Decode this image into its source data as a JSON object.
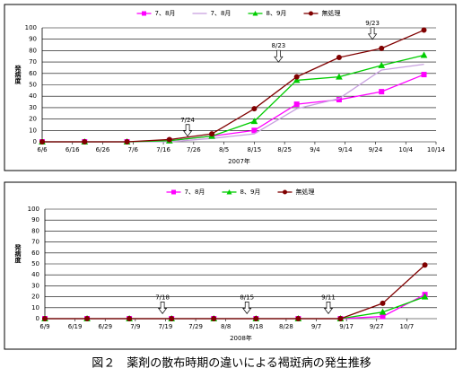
{
  "chart_data": [
    {
      "type": "line",
      "x_label": "2007年",
      "y_label": "発病度",
      "xlim": [
        "2007-06-06",
        "2007-10-14"
      ],
      "xticks": [
        {
          "value": "2007-06-06",
          "label": "6/6"
        },
        {
          "value": "2007-06-16",
          "label": "6/16"
        },
        {
          "value": "2007-06-26",
          "label": "6/26"
        },
        {
          "value": "2007-07-06",
          "label": "7/6"
        },
        {
          "value": "2007-07-16",
          "label": "7/16"
        },
        {
          "value": "2007-07-26",
          "label": "7/26"
        },
        {
          "value": "2007-08-05",
          "label": "8/5"
        },
        {
          "value": "2007-08-15",
          "label": "8/15"
        },
        {
          "value": "2007-08-25",
          "label": "8/25"
        },
        {
          "value": "2007-09-04",
          "label": "9/4"
        },
        {
          "value": "2007-09-14",
          "label": "9/14"
        },
        {
          "value": "2007-09-24",
          "label": "9/24"
        },
        {
          "value": "2007-10-04",
          "label": "10/4"
        },
        {
          "value": "2007-10-14",
          "label": "10/14"
        }
      ],
      "ylim": [
        0,
        100
      ],
      "yticks": [
        0,
        10,
        20,
        30,
        40,
        50,
        60,
        70,
        80,
        90,
        100
      ],
      "grid": true,
      "x": [
        "2007-06-06",
        "2007-06-20",
        "2007-07-04",
        "2007-07-18",
        "2007-08-01",
        "2007-08-15",
        "2007-08-29",
        "2007-09-12",
        "2007-09-26",
        "2007-10-10"
      ],
      "series": [
        {
          "name": "7、8月",
          "color": "#ff00ff",
          "marker": "square",
          "values": [
            0,
            0,
            0,
            1,
            5,
            10,
            33,
            37,
            44,
            59
          ]
        },
        {
          "name": "7、8月",
          "color": "#c8a0e0",
          "marker": "none",
          "values": [
            0,
            0,
            0,
            0,
            3,
            7,
            29,
            38,
            63,
            68
          ]
        },
        {
          "name": "8、9月",
          "color": "#00cc00",
          "marker": "triangle",
          "values": [
            0,
            0,
            0,
            1,
            5,
            18,
            54,
            57,
            67,
            76
          ]
        },
        {
          "name": "無処理",
          "color": "#800000",
          "marker": "circle",
          "values": [
            0,
            0,
            0,
            2,
            7,
            29,
            57,
            74,
            82,
            98
          ]
        }
      ],
      "annotations": [
        {
          "text": "7/24",
          "x": "2007-07-24",
          "y": 12
        },
        {
          "text": "8/23",
          "x": "2007-08-23",
          "y": 77
        },
        {
          "text": "9/23",
          "x": "2007-09-23",
          "y": 97
        }
      ]
    },
    {
      "type": "line",
      "x_label": "2008年",
      "y_label": "発病度",
      "xlim": [
        "2008-06-09",
        "2008-10-17"
      ],
      "xticks": [
        {
          "value": "2008-06-09",
          "label": "6/9"
        },
        {
          "value": "2008-06-19",
          "label": "6/19"
        },
        {
          "value": "2008-06-29",
          "label": "6/29"
        },
        {
          "value": "2008-07-09",
          "label": "7/9"
        },
        {
          "value": "2008-07-19",
          "label": "7/19"
        },
        {
          "value": "2008-07-29",
          "label": "7/29"
        },
        {
          "value": "2008-08-08",
          "label": "8/8"
        },
        {
          "value": "2008-08-18",
          "label": "8/18"
        },
        {
          "value": "2008-08-28",
          "label": "8/28"
        },
        {
          "value": "2008-09-07",
          "label": "9/7"
        },
        {
          "value": "2008-09-17",
          "label": "9/17"
        },
        {
          "value": "2008-09-27",
          "label": "9/27"
        },
        {
          "value": "2008-10-07",
          "label": "10/7"
        }
      ],
      "ylim": [
        0,
        100
      ],
      "yticks": [
        0,
        10,
        20,
        30,
        40,
        50,
        60,
        70,
        80,
        90,
        100
      ],
      "grid": true,
      "x": [
        "2008-06-09",
        "2008-06-23",
        "2008-07-07",
        "2008-07-21",
        "2008-08-04",
        "2008-08-18",
        "2008-09-01",
        "2008-09-15",
        "2008-09-29",
        "2008-10-13"
      ],
      "series": [
        {
          "name": "7、8月",
          "color": "#ff00ff",
          "marker": "square",
          "values": [
            0,
            0,
            0,
            0,
            0,
            0,
            0,
            0,
            2,
            22
          ]
        },
        {
          "name": "8、9月",
          "color": "#00cc00",
          "marker": "triangle",
          "values": [
            0,
            0,
            0,
            0,
            0,
            0,
            0,
            0,
            6,
            20
          ]
        },
        {
          "name": "無処理",
          "color": "#800000",
          "marker": "circle",
          "values": [
            0,
            0,
            0,
            0,
            0,
            0,
            0,
            0,
            14,
            49
          ]
        }
      ],
      "annotations": [
        {
          "text": "7/18",
          "x": "2008-07-18",
          "y": 12
        },
        {
          "text": "8/15",
          "x": "2008-08-15",
          "y": 12
        },
        {
          "text": "9/11",
          "x": "2008-09-11",
          "y": 12
        }
      ]
    }
  ],
  "caption": "図２　薬剤の散布時期の違いによる褐斑病の発生推移"
}
